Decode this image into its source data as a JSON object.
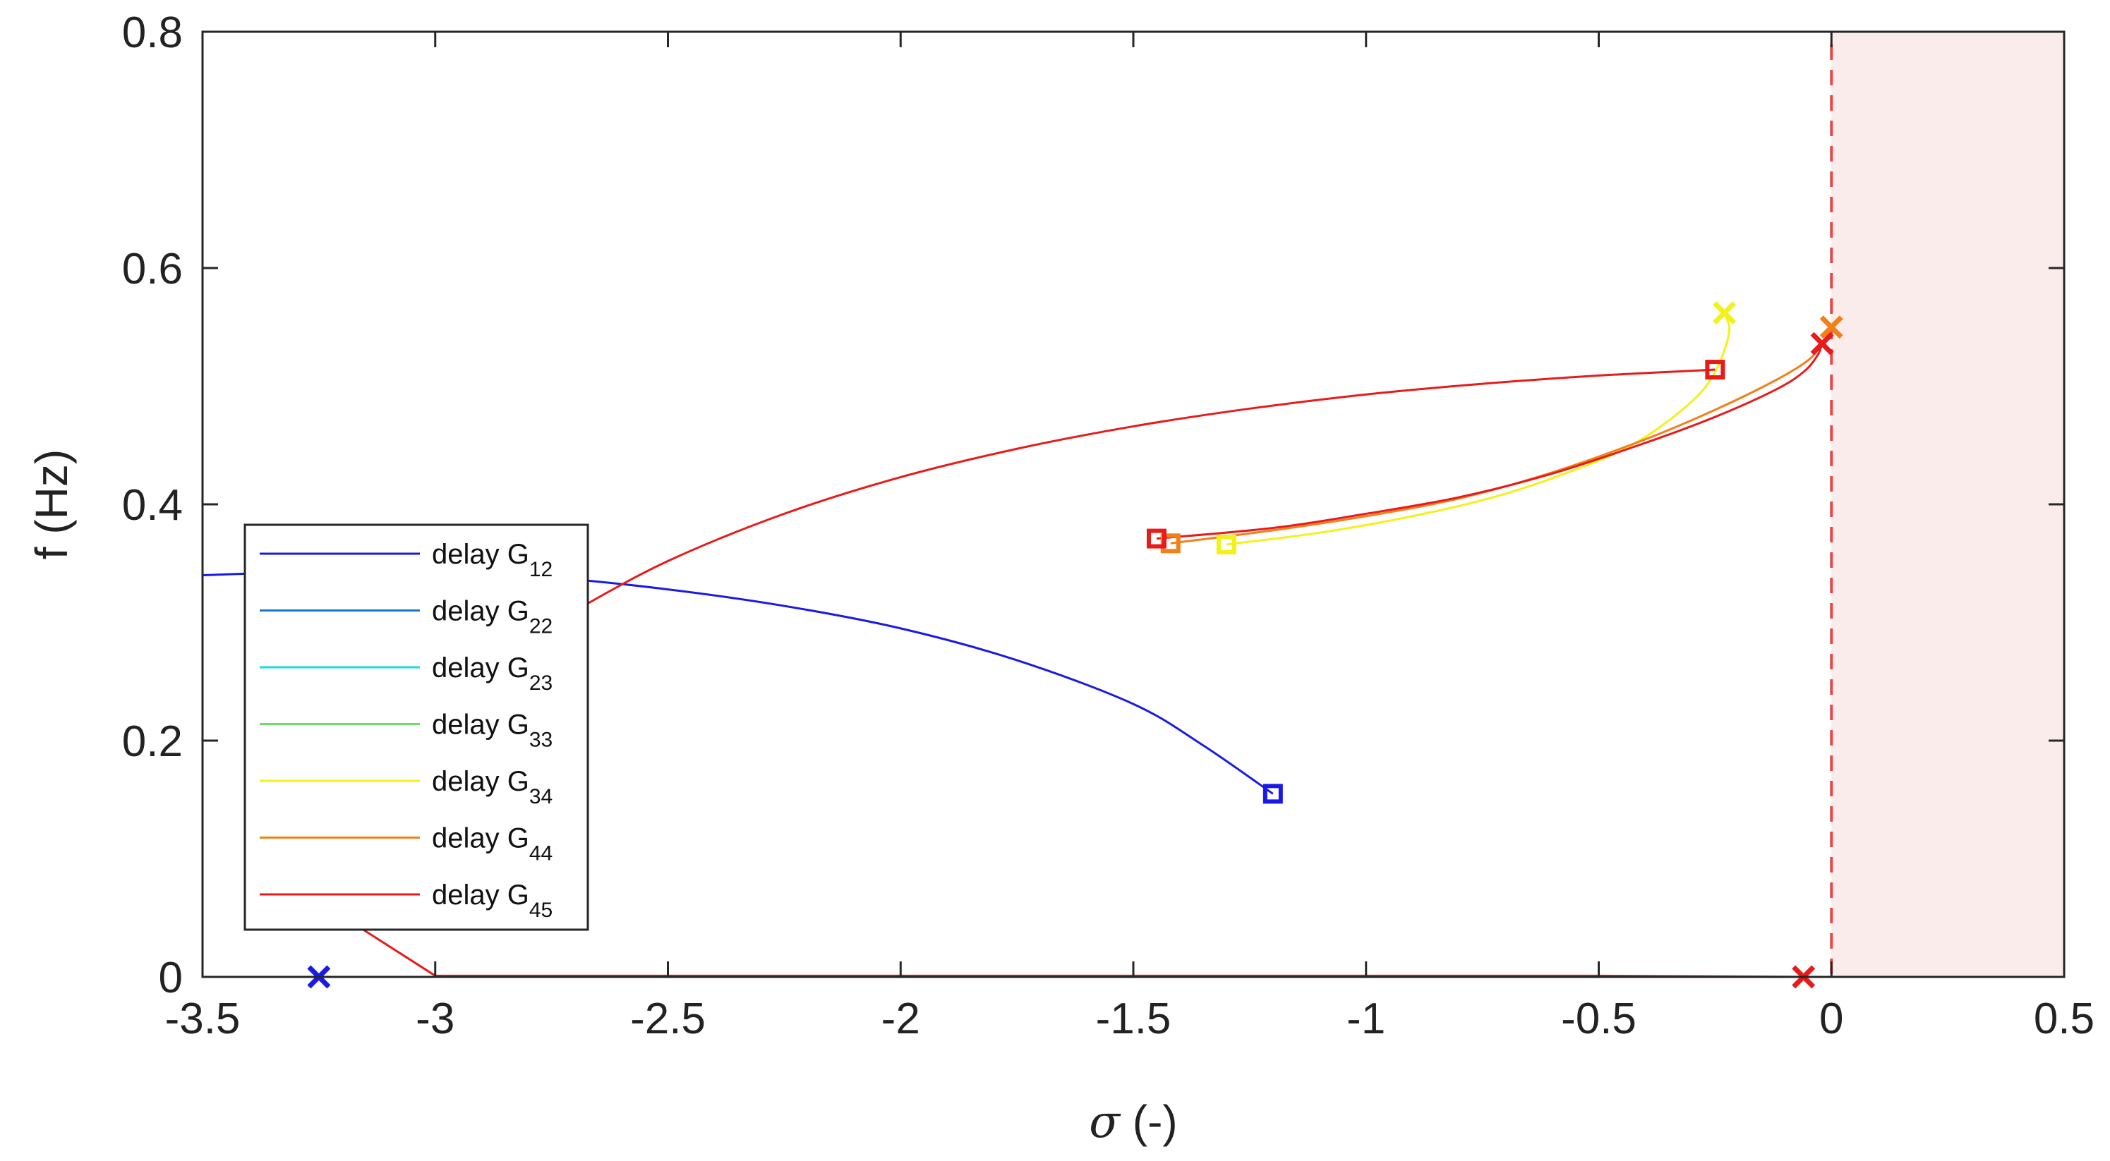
{
  "chart_data": {
    "type": "line",
    "xlabel_symbol": "σ",
    "xlabel_unit": " (-)",
    "ylabel": "f (Hz)",
    "xlim": [
      -3.5,
      0.5
    ],
    "ylim": [
      0,
      0.8
    ],
    "xticks": [
      -3.5,
      -3,
      -2.5,
      -2,
      -1.5,
      -1,
      -0.5,
      0,
      0.5
    ],
    "xtick_labels": [
      "-3.5",
      "-3",
      "-2.5",
      "-2",
      "-1.5",
      "-1",
      "-0.5",
      "0",
      "0.5"
    ],
    "yticks": [
      0,
      0.2,
      0.4,
      0.6,
      0.8
    ],
    "ytick_labels": [
      "0",
      "0.2",
      "0.4",
      "0.6",
      "0.8"
    ],
    "grid": false,
    "legend_position": "bottom-left",
    "unstable_region": {
      "x_from": 0,
      "x_to": 0.5,
      "fill": "#fbecec",
      "boundary_color": "#e8484a"
    },
    "series": [
      {
        "name": "delay G",
        "sub": "12",
        "color": "#1a1ae6",
        "points": [
          [
            -3.5,
            0.34
          ],
          [
            -3.25,
            0.343
          ],
          [
            -3.0,
            0.343
          ],
          [
            -2.75,
            0.338
          ],
          [
            -2.5,
            0.328
          ],
          [
            -2.25,
            0.314
          ],
          [
            -2.0,
            0.295
          ],
          [
            -1.75,
            0.268
          ],
          [
            -1.5,
            0.231
          ],
          [
            -1.35,
            0.196
          ],
          [
            -1.2,
            0.155
          ]
        ],
        "start_marker": [
          -1.2,
          0.155
        ],
        "end_marker": [
          -3.25,
          0.0
        ],
        "tail": [
          [
            -3.5,
            0.0
          ],
          [
            -3.25,
            0.0
          ]
        ]
      },
      {
        "name": "delay G",
        "sub": "22",
        "color": "#1a73d9",
        "points": [],
        "start_marker": null,
        "end_marker": null
      },
      {
        "name": "delay G",
        "sub": "23",
        "color": "#19d9e6",
        "points": [],
        "start_marker": null,
        "end_marker": null
      },
      {
        "name": "delay G",
        "sub": "33",
        "color": "#66e066",
        "points": [],
        "start_marker": null,
        "end_marker": null
      },
      {
        "name": "delay G",
        "sub": "34",
        "color": "#f2f21a",
        "points": [
          [
            -1.3,
            0.366
          ],
          [
            -1.1,
            0.376
          ],
          [
            -0.9,
            0.39
          ],
          [
            -0.7,
            0.409
          ],
          [
            -0.5,
            0.437
          ],
          [
            -0.4,
            0.457
          ],
          [
            -0.3,
            0.487
          ],
          [
            -0.25,
            0.512
          ],
          [
            -0.22,
            0.545
          ],
          [
            -0.23,
            0.562
          ]
        ],
        "start_marker": [
          -1.3,
          0.366
        ],
        "end_marker": [
          -0.23,
          0.562
        ]
      },
      {
        "name": "delay G",
        "sub": "44",
        "color": "#f28019",
        "points": [
          [
            -1.42,
            0.367
          ],
          [
            -1.2,
            0.378
          ],
          [
            -1.0,
            0.39
          ],
          [
            -0.8,
            0.405
          ],
          [
            -0.6,
            0.427
          ],
          [
            -0.4,
            0.455
          ],
          [
            -0.25,
            0.48
          ],
          [
            -0.12,
            0.505
          ],
          [
            -0.05,
            0.522
          ],
          [
            -0.02,
            0.536
          ],
          [
            0.0,
            0.55
          ]
        ],
        "start_marker": [
          -1.42,
          0.367
        ],
        "end_marker": [
          0.0,
          0.55
        ]
      },
      {
        "name": "delay G",
        "sub": "45",
        "color": "#e81a1a",
        "points": [
          [
            -1.45,
            0.371
          ],
          [
            -1.2,
            0.38
          ],
          [
            -1.0,
            0.392
          ],
          [
            -0.8,
            0.406
          ],
          [
            -0.6,
            0.426
          ],
          [
            -0.4,
            0.452
          ],
          [
            -0.25,
            0.474
          ],
          [
            -0.12,
            0.497
          ],
          [
            -0.06,
            0.512
          ],
          [
            -0.03,
            0.526
          ],
          [
            -0.02,
            0.536
          ]
        ],
        "start_marker": [
          -1.45,
          0.371
        ],
        "end_marker": [
          -0.02,
          0.536
        ],
        "branch2": [
          [
            -0.25,
            0.514
          ],
          [
            -0.5,
            0.509
          ],
          [
            -0.75,
            0.502
          ],
          [
            -1.0,
            0.493
          ],
          [
            -1.25,
            0.481
          ],
          [
            -1.5,
            0.466
          ],
          [
            -1.75,
            0.447
          ],
          [
            -2.0,
            0.423
          ],
          [
            -2.25,
            0.392
          ],
          [
            -2.5,
            0.352
          ],
          [
            -2.7,
            0.31
          ],
          [
            -2.8,
            0.287
          ]
        ],
        "branch2_start_marker": [
          -0.25,
          0.514
        ],
        "tail": [
          [
            -3.25,
            0.064
          ],
          [
            -3.0,
            0.001
          ],
          [
            -2.5,
            0.001
          ],
          [
            -1.5,
            0.001
          ],
          [
            -0.5,
            0.001
          ],
          [
            -0.06,
            0.0
          ]
        ],
        "tail_end_marker": [
          -0.06,
          0.0
        ]
      }
    ]
  }
}
